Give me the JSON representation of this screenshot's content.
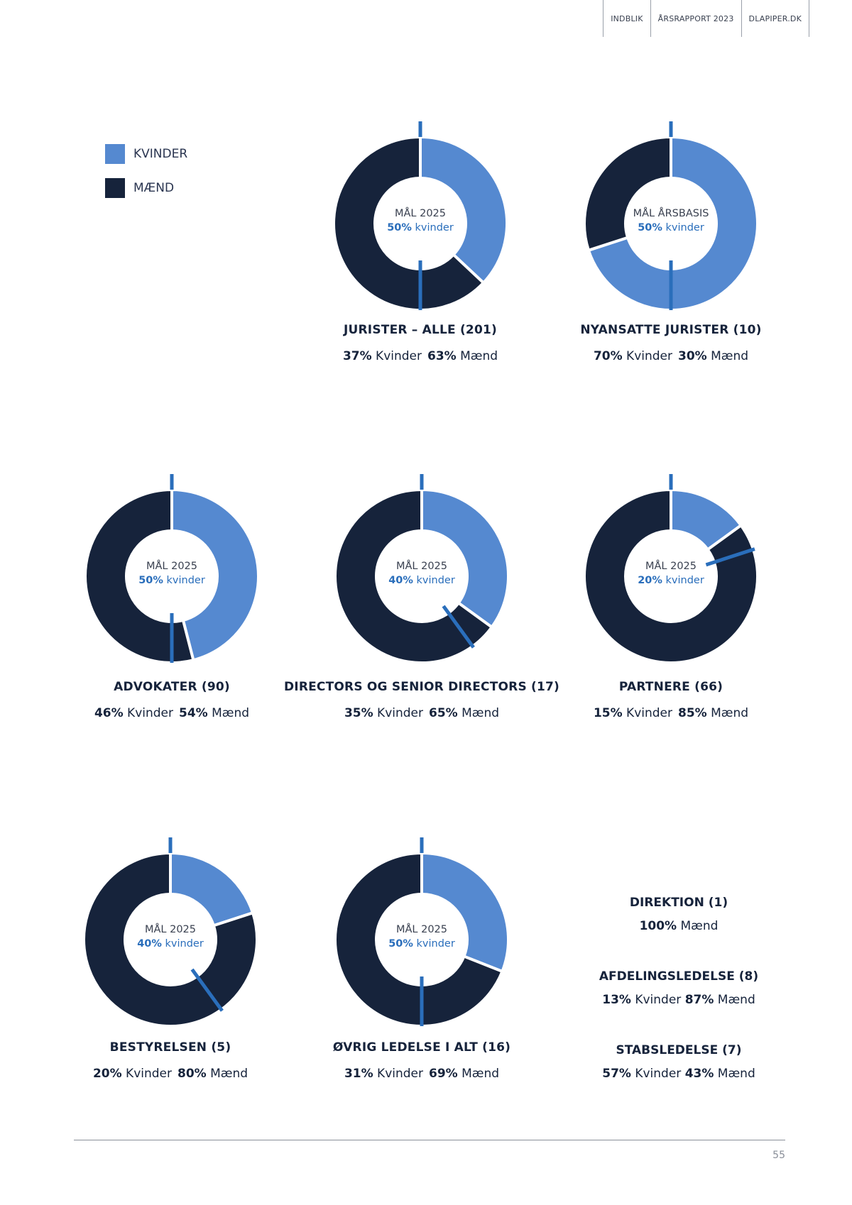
{
  "header": {
    "items": [
      "INDBLIK",
      "ÅRSRAPPORT 2023",
      "DLAPIPER.DK"
    ]
  },
  "legend": [
    {
      "label": "KVINDER",
      "color": "#5589d0"
    },
    {
      "label": "MÆND",
      "color": "#16233b"
    }
  ],
  "colors": {
    "women": "#5589d0",
    "men": "#16233b",
    "target": "#2a6ebb"
  },
  "chart_data": [
    {
      "type": "pie",
      "title": "JURISTER – ALLE (201)",
      "categories": [
        "Kvinder",
        "Mænd"
      ],
      "values": [
        37,
        63
      ],
      "target": 50,
      "center_goal": "MÅL 2025",
      "center_pct": "50%",
      "center_unit": " kvinder",
      "stats": [
        {
          "pct": "37%",
          "label": " Kvinder"
        },
        {
          "pct": "63%",
          "label": " Mænd"
        }
      ]
    },
    {
      "type": "pie",
      "title": "NYANSATTE JURISTER (10)",
      "categories": [
        "Kvinder",
        "Mænd"
      ],
      "values": [
        70,
        30
      ],
      "target": 50,
      "center_goal": "MÅL ÅRSBASIS",
      "center_pct": "50%",
      "center_unit": " kvinder",
      "stats": [
        {
          "pct": "70%",
          "label": " Kvinder"
        },
        {
          "pct": "30%",
          "label": " Mænd"
        }
      ]
    },
    {
      "type": "pie",
      "title": "ADVOKATER (90)",
      "categories": [
        "Kvinder",
        "Mænd"
      ],
      "values": [
        46,
        54
      ],
      "target": 50,
      "center_goal": "MÅL 2025",
      "center_pct": "50%",
      "center_unit": " kvinder",
      "stats": [
        {
          "pct": "46%",
          "label": " Kvinder"
        },
        {
          "pct": "54%",
          "label": " Mænd"
        }
      ]
    },
    {
      "type": "pie",
      "title": "DIRECTORS OG SENIOR DIRECTORS (17)",
      "categories": [
        "Kvinder",
        "Mænd"
      ],
      "values": [
        35,
        65
      ],
      "target": 40,
      "center_goal": "MÅL 2025",
      "center_pct": "40%",
      "center_unit": " kvinder",
      "stats": [
        {
          "pct": "35%",
          "label": " Kvinder"
        },
        {
          "pct": "65%",
          "label": " Mænd"
        }
      ]
    },
    {
      "type": "pie",
      "title": "PARTNERE (66)",
      "categories": [
        "Kvinder",
        "Mænd"
      ],
      "values": [
        15,
        85
      ],
      "target": 20,
      "center_goal": "MÅL 2025",
      "center_pct": "20%",
      "center_unit": " kvinder",
      "stats": [
        {
          "pct": "15%",
          "label": " Kvinder"
        },
        {
          "pct": "85%",
          "label": " Mænd"
        }
      ]
    },
    {
      "type": "pie",
      "title": "BESTYRELSEN (5)",
      "categories": [
        "Kvinder",
        "Mænd"
      ],
      "values": [
        20,
        80
      ],
      "target": 40,
      "center_goal": "MÅL 2025",
      "center_pct": "40%",
      "center_unit": " kvinder",
      "stats": [
        {
          "pct": "20%",
          "label": " Kvinder"
        },
        {
          "pct": "80%",
          "label": " Mænd"
        }
      ]
    },
    {
      "type": "pie",
      "title": "ØVRIG LEDELSE I ALT (16)",
      "categories": [
        "Kvinder",
        "Mænd"
      ],
      "values": [
        31,
        69
      ],
      "target": 50,
      "center_goal": "MÅL 2025",
      "center_pct": "50%",
      "center_unit": " kvinder",
      "stats": [
        {
          "pct": "31%",
          "label": " Kvinder"
        },
        {
          "pct": "69%",
          "label": " Mænd"
        }
      ]
    }
  ],
  "text_stats": [
    {
      "title": "DIREKTION (1)",
      "parts": [
        {
          "pct": "100%",
          "label": " Mænd"
        }
      ]
    },
    {
      "title": "AFDELINGSLEDELSE (8)",
      "parts": [
        {
          "pct": "13%",
          "label": " Kvinder "
        },
        {
          "pct": "87%",
          "label": " Mænd"
        }
      ]
    },
    {
      "title": "STABSLEDELSE (7)",
      "parts": [
        {
          "pct": "57%",
          "label": " Kvinder "
        },
        {
          "pct": "43%",
          "label": " Mænd"
        }
      ]
    }
  ],
  "footer": {
    "page_number": "55"
  }
}
